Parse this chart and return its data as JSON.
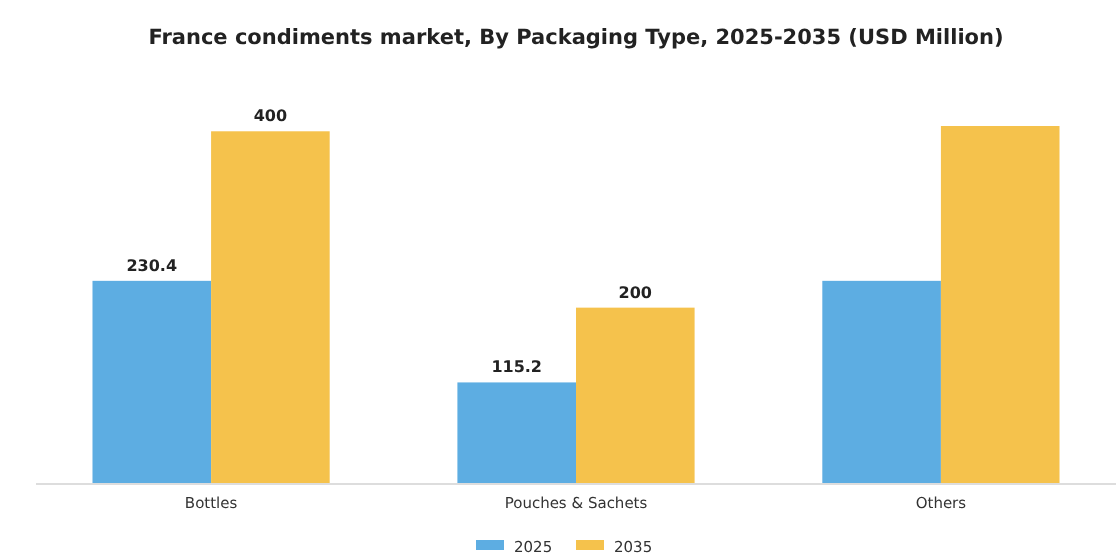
{
  "chart_data": {
    "type": "bar",
    "title": "France condiments market, By Packaging Type, 2025-2035 (USD Million)",
    "categories": [
      "Bottles",
      "Pouches & Sachets",
      "Others"
    ],
    "series": [
      {
        "name": "2025",
        "color": "#5dade2",
        "values": [
          230.4,
          115.2,
          230.4
        ],
        "value_labels": [
          "230.4",
          "115.2",
          null
        ]
      },
      {
        "name": "2035",
        "color": "#f5c24c",
        "values": [
          400,
          200,
          406
        ],
        "value_labels": [
          "400",
          "200",
          null
        ]
      }
    ],
    "legend": "bottom"
  }
}
